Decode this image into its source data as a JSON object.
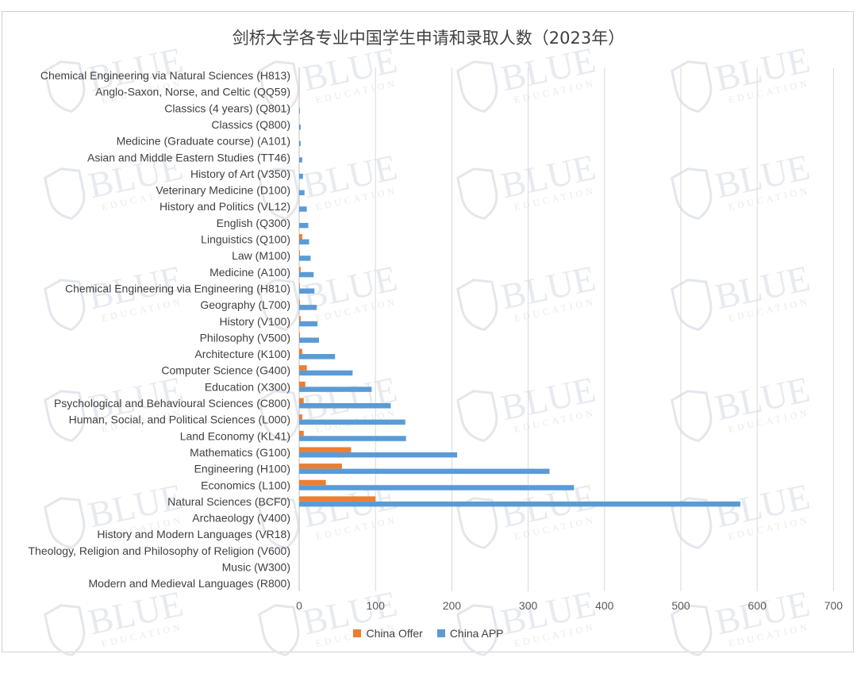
{
  "chart_data": {
    "type": "bar",
    "orientation": "horizontal",
    "title": "剑桥大学各专业中国学生申请和录取人数（2023年）",
    "categories": [
      "Chemical Engineering via Natural Sciences (H813)",
      "Anglo-Saxon, Norse, and Celtic (QQ59)",
      "Classics (4 years) (Q801)",
      "Classics (Q800)",
      "Medicine (Graduate course) (A101)",
      "Asian and Middle Eastern Studies (TT46)",
      "History of Art (V350)",
      "Veterinary Medicine (D100)",
      "History and Politics (VL12)",
      "English (Q300)",
      "Linguistics (Q100)",
      "Law (M100)",
      "Medicine (A100)",
      "Chemical Engineering via Engineering (H810)",
      "Geography (L700)",
      "History (V100)",
      "Philosophy (V500)",
      "Architecture (K100)",
      "Computer Science (G400)",
      "Education (X300)",
      "Psychological and Behavioural Sciences (C800)",
      "Human, Social, and Political Sciences (L000)",
      "Land Economy (KL41)",
      "Mathematics (G100)",
      "Engineering (H100)",
      "Economics (L100)",
      "Natural Sciences (BCF0)",
      "Archaeology (V400)",
      "History and Modern Languages (VR18)",
      "Theology, Religion and Philosophy of Religion (V600)",
      "Music (W300)",
      "Modern and Medieval Languages (R800)"
    ],
    "series": [
      {
        "name": "China Offer",
        "color": "#ed7d31",
        "values": [
          0,
          0,
          0,
          0,
          0,
          0,
          0,
          0,
          0,
          0,
          4,
          1,
          2,
          1,
          1,
          2,
          1,
          4,
          10,
          8,
          6,
          4,
          6,
          68,
          56,
          35,
          100,
          0,
          0,
          0,
          0,
          0
        ]
      },
      {
        "name": "China APP",
        "color": "#5b9bd5",
        "values": [
          0,
          0,
          1,
          2,
          2,
          4,
          5,
          7,
          10,
          12,
          13,
          15,
          19,
          20,
          23,
          24,
          26,
          47,
          70,
          95,
          120,
          139,
          140,
          207,
          328,
          360,
          578,
          0,
          0,
          0,
          0,
          0
        ]
      }
    ],
    "xlim": [
      0,
      700
    ],
    "xticks": [
      "0",
      "100",
      "200",
      "300",
      "400",
      "500",
      "600",
      "700"
    ],
    "grid": "vertical",
    "legend_position": "bottom"
  },
  "watermark": {
    "text": "BLUE",
    "subtext": "EDUCATION"
  }
}
